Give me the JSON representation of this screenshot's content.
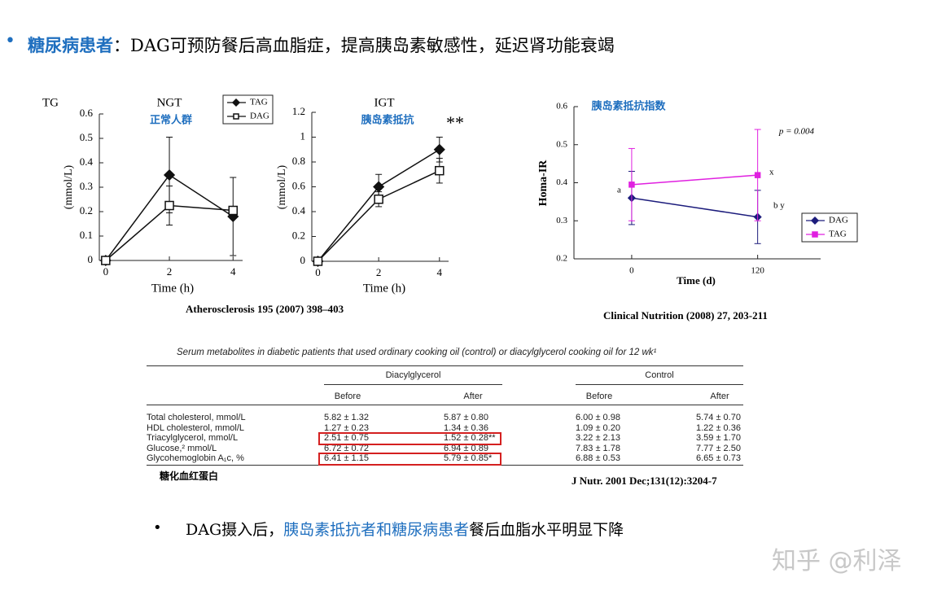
{
  "header": {
    "key": "糖尿病患者",
    "text": "：DAG可预防餐后高血脂症，提高胰岛素敏感性，延迟肾功能衰竭"
  },
  "chart_data": [
    {
      "type": "line",
      "corner_label": "TG",
      "title": "NGT",
      "subtitle": "正常人群",
      "y_label": "(mmol/L)",
      "x_label": "Time (h)",
      "x": [
        0,
        2,
        4
      ],
      "xlim": [
        -0.2,
        4.3
      ],
      "xticks": [
        0,
        2,
        4
      ],
      "ylim": [
        0,
        0.6
      ],
      "yticks": [
        0,
        0.1,
        0.2,
        0.3,
        0.4,
        0.5,
        0.6
      ],
      "legend": "upper right",
      "series": [
        {
          "name": "TAG",
          "color": "#111111",
          "marker": "diamond",
          "filled": true,
          "values": [
            0,
            0.35,
            0.18
          ],
          "errors": [
            null,
            0.155,
            0.16
          ]
        },
        {
          "name": "DAG",
          "color": "#111111",
          "marker": "square",
          "filled": false,
          "values": [
            0,
            0.225,
            0.205
          ],
          "errors": [
            null,
            0.08,
            null
          ]
        }
      ]
    },
    {
      "type": "line",
      "title": "IGT",
      "subtitle": "胰岛素抵抗",
      "annotations": [
        "**"
      ],
      "y_label": "(mmol/L)",
      "x_label": "Time (h)",
      "x": [
        0,
        2,
        4
      ],
      "xlim": [
        -0.2,
        4.3
      ],
      "xticks": [
        0,
        2,
        4
      ],
      "ylim": [
        0,
        1.2
      ],
      "yticks": [
        0,
        0.2,
        0.4,
        0.6,
        0.8,
        1,
        1.2
      ],
      "series": [
        {
          "color": "#111111",
          "marker": "diamond",
          "filled": true,
          "values": [
            0,
            0.6,
            0.9
          ],
          "errors": [
            null,
            0.1,
            0.1
          ]
        },
        {
          "color": "#111111",
          "marker": "square",
          "filled": false,
          "values": [
            0,
            0.5,
            0.73
          ],
          "errors": [
            null,
            0.06,
            0.1
          ]
        }
      ]
    },
    {
      "type": "line",
      "title": "胰岛素抵抗指数",
      "annotations": [
        "p = 0.004",
        "a",
        "x",
        "b y"
      ],
      "y_label": "Homa-IR",
      "x_label": "Time (d)",
      "x": [
        0,
        120
      ],
      "xlim": [
        -55,
        180
      ],
      "xticks": [
        0,
        120
      ],
      "ylim": [
        0.2,
        0.6
      ],
      "yticks": [
        0.2,
        0.3,
        0.4,
        0.5,
        0.6
      ],
      "legend": "lower right",
      "series": [
        {
          "name": "DAG",
          "color": "#1c1c7c",
          "marker": "diamond",
          "filled": true,
          "values": [
            0.36,
            0.31
          ],
          "errors": [
            0.07,
            0.07
          ]
        },
        {
          "name": "TAG",
          "color": "#e020e0",
          "marker": "square",
          "filled": true,
          "values": [
            0.395,
            0.42
          ],
          "errors": [
            0.095,
            0.12
          ]
        }
      ]
    }
  ],
  "sources": [
    "Atherosclerosis 195 (2007) 398–403",
    "Clinical Nutrition (2008) 27, 203-211"
  ],
  "table": {
    "caption": "Serum metabolites in diabetic patients that used ordinary cooking oil (control) or diacylglycerol cooking oil for 12 wk¹",
    "groups": [
      "Diacylglycerol",
      "Control"
    ],
    "columns": [
      "Before",
      "After",
      "Before",
      "After"
    ],
    "rows": [
      [
        "Total cholesterol, mmol/L",
        "5.82 ± 1.32",
        "5.87 ± 0.80",
        "6.00 ± 0.98",
        "5.74 ± 0.70"
      ],
      [
        "HDL cholesterol, mmol/L",
        "1.27 ± 0.23",
        "1.34 ± 0.36",
        "1.09 ± 0.20",
        "1.22 ± 0.36"
      ],
      [
        "Triacylglycerol, mmol/L",
        "2.51 ± 0.75",
        "1.52 ± 0.28**",
        "3.22 ± 2.13",
        "3.59 ± 1.70"
      ],
      [
        "Glucose,² mmol/L",
        "6.72 ± 0.72",
        "6.94 ± 0.89",
        "7.83 ± 1.78",
        "7.77 ± 2.50"
      ],
      [
        "Glycohemoglobin A₁c, %",
        "6.41 ± 1.15",
        "5.79 ± 0.85*",
        "6.88 ± 0.53",
        "6.65 ± 0.73"
      ]
    ],
    "note": "糖化血红蛋白",
    "source": "J Nutr. 2001 Dec;131(12):3204-7"
  },
  "conclusion": [
    "DAG摄入后，",
    "胰岛素抵抗者和糖尿病患者",
    "餐后血脂水平明显下降"
  ],
  "watermark": "知乎 @利泽"
}
